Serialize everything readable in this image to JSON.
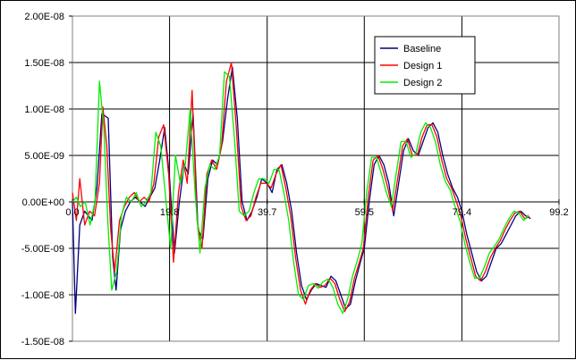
{
  "chart_data": {
    "type": "line",
    "title": "",
    "xlabel": "",
    "ylabel": "",
    "xlim": [
      0,
      99.2
    ],
    "ylim": [
      -1.5e-08,
      2e-08
    ],
    "x_tick_labels": [
      "0.0",
      "19.8",
      "39.7",
      "59.5",
      "79.4",
      "99.2"
    ],
    "y_tick_labels": [
      "2.00E-08",
      "1.50E-08",
      "1.00E-08",
      "5.00E-09",
      "0.00E+00",
      "-5.00E-09",
      "-1.00E-08",
      "-1.50E-08"
    ],
    "grid": true,
    "legend_position": "top-right",
    "series": [
      {
        "name": "Baseline",
        "color": "#000080",
        "points": [
          [
            0.0,
            0.0
          ],
          [
            0.6,
            -1.2e-08
          ],
          [
            1.5,
            -2.5e-09
          ],
          [
            2.5,
            -1e-09
          ],
          [
            4.0,
            -2e-09
          ],
          [
            5.0,
            1.5e-09
          ],
          [
            6.0,
            9.5e-09
          ],
          [
            7.3,
            9e-09
          ],
          [
            8.2,
            -6e-09
          ],
          [
            8.9,
            -9.5e-09
          ],
          [
            9.8,
            -3e-09
          ],
          [
            10.8,
            -1e-09
          ],
          [
            11.8,
            0.0
          ],
          [
            12.8,
            5e-10
          ],
          [
            13.8,
            0.0
          ],
          [
            14.8,
            -5e-10
          ],
          [
            15.8,
            5e-10
          ],
          [
            16.8,
            1.5e-09
          ],
          [
            17.8,
            4.5e-09
          ],
          [
            18.8,
            8e-09
          ],
          [
            19.8,
            2.5e-09
          ],
          [
            20.8,
            -5.5e-09
          ],
          [
            21.8,
            0.0
          ],
          [
            22.8,
            4e-09
          ],
          [
            23.6,
            3e-09
          ],
          [
            24.6,
            9.5e-09
          ],
          [
            25.6,
            -3e-09
          ],
          [
            26.6,
            -4e-09
          ],
          [
            27.6,
            2.5e-09
          ],
          [
            28.6,
            4.5e-09
          ],
          [
            29.6,
            4e-09
          ],
          [
            30.6,
            6.5e-09
          ],
          [
            31.6,
            1.1e-08
          ],
          [
            32.6,
            1.45e-08
          ],
          [
            33.6,
            9e-09
          ],
          [
            34.6,
            0.0
          ],
          [
            35.6,
            -2e-09
          ],
          [
            36.6,
            -1e-09
          ],
          [
            37.6,
            5e-10
          ],
          [
            38.6,
            2.5e-09
          ],
          [
            39.7,
            2e-09
          ],
          [
            40.7,
            1e-09
          ],
          [
            41.7,
            3.5e-09
          ],
          [
            42.7,
            4e-09
          ],
          [
            43.7,
            2e-09
          ],
          [
            44.7,
            -1e-09
          ],
          [
            45.7,
            -5.5e-09
          ],
          [
            46.7,
            -9e-09
          ],
          [
            47.7,
            -1.05e-08
          ],
          [
            48.7,
            -9.5e-09
          ],
          [
            49.7,
            -8.8e-09
          ],
          [
            50.7,
            -9e-09
          ],
          [
            51.7,
            -9.2e-09
          ],
          [
            52.7,
            -8e-09
          ],
          [
            53.7,
            -8.5e-09
          ],
          [
            54.7,
            -1e-08
          ],
          [
            55.7,
            -1.15e-08
          ],
          [
            56.7,
            -1.1e-08
          ],
          [
            57.7,
            -8.5e-09
          ],
          [
            58.7,
            -6.5e-09
          ],
          [
            59.5,
            -5e-09
          ],
          [
            60.5,
            0.0
          ],
          [
            61.5,
            4e-09
          ],
          [
            62.5,
            5e-09
          ],
          [
            63.5,
            4e-09
          ],
          [
            64.5,
            2e-09
          ],
          [
            65.5,
            -1.5e-09
          ],
          [
            66.5,
            2e-09
          ],
          [
            67.5,
            5.5e-09
          ],
          [
            68.5,
            6.8e-09
          ],
          [
            69.5,
            5.5e-09
          ],
          [
            70.5,
            5e-09
          ],
          [
            71.5,
            6.5e-09
          ],
          [
            72.5,
            8e-09
          ],
          [
            73.5,
            8.5e-09
          ],
          [
            74.5,
            7.5e-09
          ],
          [
            75.5,
            5e-09
          ],
          [
            76.5,
            3e-09
          ],
          [
            77.5,
            1.5e-09
          ],
          [
            78.5,
            5e-10
          ],
          [
            79.4,
            -1e-09
          ],
          [
            80.4,
            -3.5e-09
          ],
          [
            81.4,
            -5.5e-09
          ],
          [
            82.4,
            -7.5e-09
          ],
          [
            83.4,
            -8.5e-09
          ],
          [
            84.4,
            -8e-09
          ],
          [
            85.4,
            -6.5e-09
          ],
          [
            86.4,
            -5e-09
          ],
          [
            87.4,
            -4.5e-09
          ],
          [
            88.4,
            -3.5e-09
          ],
          [
            89.4,
            -2.5e-09
          ],
          [
            90.4,
            -1.5e-09
          ],
          [
            91.4,
            -1e-09
          ],
          [
            92.4,
            -1.5e-09
          ],
          [
            93.4,
            -1.8e-09
          ]
        ]
      },
      {
        "name": "Design 1",
        "color": "#ff0000",
        "points": [
          [
            0.0,
            1e-09
          ],
          [
            0.8,
            -2e-09
          ],
          [
            1.5,
            2.5e-09
          ],
          [
            2.5,
            -2.5e-09
          ],
          [
            3.5,
            -1e-09
          ],
          [
            4.5,
            -1.5e-09
          ],
          [
            5.5,
            2e-09
          ],
          [
            6.2,
            1.02e-08
          ],
          [
            7.0,
            6e-09
          ],
          [
            7.8,
            -3e-09
          ],
          [
            8.6,
            -7.5e-09
          ],
          [
            9.6,
            -2e-09
          ],
          [
            10.6,
            -5e-10
          ],
          [
            11.6,
            5e-10
          ],
          [
            12.6,
            1e-09
          ],
          [
            13.6,
            0.0
          ],
          [
            14.6,
            5e-10
          ],
          [
            15.6,
            0.0
          ],
          [
            16.6,
            2e-09
          ],
          [
            17.6,
            7e-09
          ],
          [
            18.6,
            8.3e-09
          ],
          [
            19.6,
            3e-09
          ],
          [
            20.6,
            -6.5e-09
          ],
          [
            21.6,
            1e-09
          ],
          [
            22.6,
            4.5e-09
          ],
          [
            23.4,
            2e-09
          ],
          [
            24.4,
            1.2e-08
          ],
          [
            25.4,
            -2e-09
          ],
          [
            26.4,
            -5e-09
          ],
          [
            27.4,
            3e-09
          ],
          [
            28.4,
            4.5e-09
          ],
          [
            29.4,
            3.5e-09
          ],
          [
            30.4,
            6e-09
          ],
          [
            31.4,
            1.3e-08
          ],
          [
            32.4,
            1.5e-08
          ],
          [
            33.4,
            8e-09
          ],
          [
            34.4,
            -5e-10
          ],
          [
            35.4,
            -2e-09
          ],
          [
            36.4,
            -1.5e-09
          ],
          [
            37.4,
            5e-10
          ],
          [
            38.4,
            2e-09
          ],
          [
            39.5,
            2e-09
          ],
          [
            40.5,
            1.5e-09
          ],
          [
            41.5,
            3e-09
          ],
          [
            42.5,
            4e-09
          ],
          [
            43.5,
            1.5e-09
          ],
          [
            44.5,
            -1.5e-09
          ],
          [
            45.5,
            -6e-09
          ],
          [
            46.5,
            -9.5e-09
          ],
          [
            47.5,
            -1.1e-08
          ],
          [
            48.5,
            -9.5e-09
          ],
          [
            49.5,
            -8.8e-09
          ],
          [
            50.5,
            -9.2e-09
          ],
          [
            51.5,
            -9e-09
          ],
          [
            52.5,
            -8.2e-09
          ],
          [
            53.5,
            -8.8e-09
          ],
          [
            54.5,
            -1.05e-08
          ],
          [
            55.5,
            -1.18e-08
          ],
          [
            56.5,
            -1.08e-08
          ],
          [
            57.5,
            -8.2e-09
          ],
          [
            58.5,
            -6.5e-09
          ],
          [
            59.3,
            -5e-09
          ],
          [
            60.3,
            5e-10
          ],
          [
            61.3,
            4.5e-09
          ],
          [
            62.3,
            5e-09
          ],
          [
            63.3,
            3.5e-09
          ],
          [
            64.3,
            1.5e-09
          ],
          [
            65.3,
            -1e-09
          ],
          [
            66.3,
            2.5e-09
          ],
          [
            67.3,
            6e-09
          ],
          [
            68.3,
            6.8e-09
          ],
          [
            69.3,
            5e-09
          ],
          [
            70.3,
            5e-09
          ],
          [
            71.3,
            7e-09
          ],
          [
            72.3,
            8.3e-09
          ],
          [
            73.3,
            8.3e-09
          ],
          [
            74.3,
            7e-09
          ],
          [
            75.3,
            4.5e-09
          ],
          [
            76.3,
            2.5e-09
          ],
          [
            77.3,
            1.5e-09
          ],
          [
            78.3,
            0.0
          ],
          [
            79.2,
            -1.5e-09
          ],
          [
            80.2,
            -4e-09
          ],
          [
            81.2,
            -6e-09
          ],
          [
            82.2,
            -8e-09
          ],
          [
            83.2,
            -8.5e-09
          ],
          [
            84.2,
            -7.5e-09
          ],
          [
            85.2,
            -6e-09
          ],
          [
            86.2,
            -5e-09
          ],
          [
            87.2,
            -4.2e-09
          ],
          [
            88.2,
            -3e-09
          ],
          [
            89.2,
            -2e-09
          ],
          [
            90.2,
            -1.2e-09
          ],
          [
            91.2,
            -1e-09
          ],
          [
            92.2,
            -1.8e-09
          ],
          [
            93.2,
            -1.6e-09
          ]
        ]
      },
      {
        "name": "Design 2",
        "color": "#00ee00",
        "points": [
          [
            0.0,
            0.0
          ],
          [
            0.8,
            5e-10
          ],
          [
            1.6,
            -5e-10
          ],
          [
            2.6,
            0.0
          ],
          [
            3.6,
            -2.5e-09
          ],
          [
            4.6,
            0.0
          ],
          [
            5.5,
            1.3e-08
          ],
          [
            6.4,
            8e-09
          ],
          [
            7.2,
            -2e-09
          ],
          [
            8.0,
            -9.5e-09
          ],
          [
            9.0,
            -7.5e-09
          ],
          [
            10.0,
            -1.5e-09
          ],
          [
            11.0,
            5e-10
          ],
          [
            12.0,
            0.0
          ],
          [
            13.0,
            1e-09
          ],
          [
            14.0,
            -5e-10
          ],
          [
            15.0,
            0.0
          ],
          [
            16.0,
            1e-09
          ],
          [
            17.0,
            7.5e-09
          ],
          [
            18.0,
            6e-09
          ],
          [
            19.0,
            5e-10
          ],
          [
            20.0,
            -5e-09
          ],
          [
            21.0,
            5e-09
          ],
          [
            22.0,
            2e-09
          ],
          [
            23.0,
            4e-09
          ],
          [
            24.0,
            1e-08
          ],
          [
            25.0,
            1e-09
          ],
          [
            26.0,
            -5.5e-09
          ],
          [
            27.0,
            1.5e-09
          ],
          [
            28.0,
            4e-09
          ],
          [
            29.0,
            3.5e-09
          ],
          [
            30.0,
            5e-09
          ],
          [
            31.0,
            1.4e-08
          ],
          [
            32.0,
            1.35e-08
          ],
          [
            33.0,
            7e-09
          ],
          [
            34.0,
            -1e-09
          ],
          [
            35.0,
            -1.5e-09
          ],
          [
            36.0,
            -1e-09
          ],
          [
            37.0,
            1e-09
          ],
          [
            38.0,
            2.5e-09
          ],
          [
            39.1,
            2.5e-09
          ],
          [
            40.1,
            2e-09
          ],
          [
            41.1,
            3.5e-09
          ],
          [
            42.1,
            3.5e-09
          ],
          [
            43.1,
            1e-09
          ],
          [
            44.1,
            -2e-09
          ],
          [
            45.1,
            -6.5e-09
          ],
          [
            46.1,
            -1e-08
          ],
          [
            47.1,
            -1.05e-08
          ],
          [
            48.1,
            -9e-09
          ],
          [
            49.1,
            -8.8e-09
          ],
          [
            50.1,
            -9.3e-09
          ],
          [
            51.1,
            -8.6e-09
          ],
          [
            52.1,
            -8.3e-09
          ],
          [
            53.1,
            -9.2e-09
          ],
          [
            54.1,
            -1.1e-08
          ],
          [
            55.1,
            -1.2e-08
          ],
          [
            56.1,
            -1.05e-08
          ],
          [
            57.1,
            -8e-09
          ],
          [
            58.1,
            -6.3e-09
          ],
          [
            59.0,
            -4.5e-09
          ],
          [
            60.0,
            1e-09
          ],
          [
            61.0,
            4.8e-09
          ],
          [
            62.0,
            4.8e-09
          ],
          [
            63.0,
            3e-09
          ],
          [
            64.0,
            1e-09
          ],
          [
            65.0,
            -5e-10
          ],
          [
            66.0,
            3e-09
          ],
          [
            67.0,
            6.5e-09
          ],
          [
            68.0,
            6.5e-09
          ],
          [
            69.0,
            4.8e-09
          ],
          [
            70.0,
            5.2e-09
          ],
          [
            71.0,
            7.5e-09
          ],
          [
            72.0,
            8.5e-09
          ],
          [
            73.0,
            8e-09
          ],
          [
            74.0,
            6.5e-09
          ],
          [
            75.0,
            4e-09
          ],
          [
            76.0,
            2.2e-09
          ],
          [
            77.0,
            1.3e-09
          ],
          [
            78.0,
            -5e-10
          ],
          [
            79.0,
            -2e-09
          ],
          [
            80.0,
            -4.5e-09
          ],
          [
            81.0,
            -6.5e-09
          ],
          [
            82.0,
            -8.2e-09
          ],
          [
            83.0,
            -8.2e-09
          ],
          [
            84.0,
            -7e-09
          ],
          [
            85.0,
            -5.5e-09
          ],
          [
            86.0,
            -4.8e-09
          ],
          [
            87.0,
            -4e-09
          ],
          [
            88.0,
            -2.8e-09
          ],
          [
            89.0,
            -1.8e-09
          ],
          [
            90.0,
            -1e-09
          ],
          [
            91.0,
            -1.2e-09
          ],
          [
            92.0,
            -2e-09
          ],
          [
            93.0,
            -1.4e-09
          ]
        ]
      }
    ]
  }
}
